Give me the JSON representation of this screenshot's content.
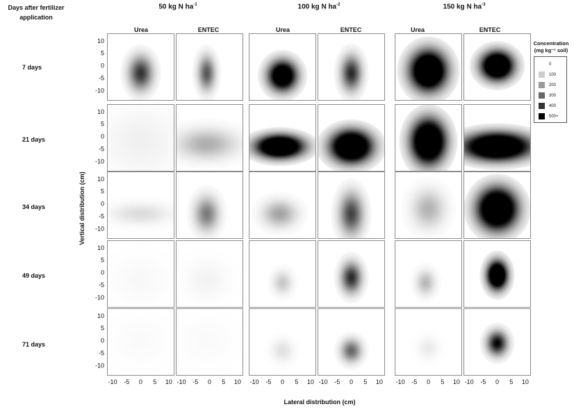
{
  "chart_data": {
    "type": "heatmap",
    "corner_title": [
      "Days after fertilizer",
      "application"
    ],
    "groups": [
      {
        "label": "50 kg N ha",
        "sup": "-1"
      },
      {
        "label": "100 kg N ha",
        "sup": "-2"
      },
      {
        "label": "150 kg N ha",
        "sup": "-3"
      }
    ],
    "columns": [
      "Urea",
      "ENTEC"
    ],
    "rows": [
      "7 days",
      "21 days",
      "34 days",
      "49 days",
      "71 days"
    ],
    "ylabel": "Vertical distribution (cm)",
    "xlabel": "Lateral distribution (cm)",
    "xlim": [
      -12,
      12
    ],
    "ylim": [
      -14,
      13
    ],
    "xticks": [
      -10,
      -5,
      0,
      5,
      10
    ],
    "yticks": [
      10,
      5,
      0,
      -5,
      -10
    ],
    "legend": {
      "title_line1": "Concentration",
      "title_line2": "(mg kg⁻¹ soil)",
      "levels": [
        {
          "label": "0",
          "value": 0,
          "color": "#ffffff"
        },
        {
          "label": "100",
          "value": 100,
          "color": "#cccccc"
        },
        {
          "label": "200",
          "value": 200,
          "color": "#999999"
        },
        {
          "label": "300",
          "value": 300,
          "color": "#666666"
        },
        {
          "label": "400",
          "value": 400,
          "color": "#333333"
        },
        {
          "label": "500+",
          "value": 500,
          "color": "#000000"
        }
      ]
    },
    "plumes": [
      [
        {
          "cx": 0,
          "cy": -3,
          "sx": 2.8,
          "sy": 4.5,
          "peak": 400
        },
        {
          "cx": -1,
          "cy": -3,
          "sx": 2.0,
          "sy": 4.5,
          "peak": 330
        },
        {
          "cx": 0,
          "cy": -4,
          "sx": 3.4,
          "sy": 4.0,
          "peak": 800
        },
        {
          "cx": 0,
          "cy": -3,
          "sx": 2.4,
          "sy": 4.6,
          "peak": 420
        },
        {
          "cx": 0,
          "cy": -2,
          "sx": 4.3,
          "sy": 5.3,
          "peak": 950
        },
        {
          "cx": 0,
          "cy": 0,
          "sx": 3.8,
          "sy": 3.8,
          "peak": 950
        }
      ],
      [
        {
          "cx": 0,
          "cy": -2,
          "sx": 9.0,
          "sy": 9.0,
          "peak": 30
        },
        {
          "cx": -1,
          "cy": -3,
          "sx": 7.0,
          "sy": 4.0,
          "peak": 160
        },
        {
          "cx": -1,
          "cy": -4,
          "sx": 5.5,
          "sy": 3.0,
          "peak": 1000
        },
        {
          "cx": 0,
          "cy": -4,
          "sx": 4.8,
          "sy": 4.2,
          "peak": 1000
        },
        {
          "cx": 0,
          "cy": -2,
          "sx": 4.0,
          "sy": 5.8,
          "peak": 1000
        },
        {
          "cx": 0,
          "cy": -4,
          "sx": 7.8,
          "sy": 3.6,
          "peak": 1000
        }
      ],
      [
        {
          "cx": 0,
          "cy": -4,
          "sx": 7.0,
          "sy": 2.8,
          "peak": 70
        },
        {
          "cx": -1,
          "cy": -4,
          "sx": 2.8,
          "sy": 4.5,
          "peak": 260
        },
        {
          "cx": -1,
          "cy": -4,
          "sx": 4.0,
          "sy": 3.5,
          "peak": 180
        },
        {
          "cx": 0,
          "cy": -4,
          "sx": 2.8,
          "sy": 5.5,
          "peak": 370
        },
        {
          "cx": 0,
          "cy": -2,
          "sx": 3.8,
          "sy": 5.0,
          "peak": 150
        },
        {
          "cx": 0,
          "cy": -2,
          "sx": 4.6,
          "sy": 5.4,
          "peak": 1000
        }
      ],
      [
        {
          "cx": 0,
          "cy": -3,
          "sx": 6.0,
          "sy": 6.0,
          "peak": 15
        },
        {
          "cx": -1,
          "cy": -3,
          "sx": 5.0,
          "sy": 5.0,
          "peak": 25
        },
        {
          "cx": 0,
          "cy": -4,
          "sx": 2.2,
          "sy": 3.0,
          "peak": 110
        },
        {
          "cx": 0,
          "cy": -2,
          "sx": 2.4,
          "sy": 4.0,
          "peak": 420
        },
        {
          "cx": -1,
          "cy": -4,
          "sx": 2.2,
          "sy": 3.2,
          "peak": 140
        },
        {
          "cx": 0,
          "cy": -1,
          "sx": 2.4,
          "sy": 3.8,
          "peak": 900
        }
      ],
      [
        {
          "cx": 0,
          "cy": 0,
          "sx": 6.0,
          "sy": 6.0,
          "peak": 10
        },
        {
          "cx": -1,
          "cy": 0,
          "sx": 6.0,
          "sy": 6.0,
          "peak": 10
        },
        {
          "cx": 0,
          "cy": -4,
          "sx": 2.5,
          "sy": 3.0,
          "peak": 60
        },
        {
          "cx": 0,
          "cy": -4,
          "sx": 2.4,
          "sy": 3.0,
          "peak": 300
        },
        {
          "cx": 0,
          "cy": -3,
          "sx": 2.5,
          "sy": 3.0,
          "peak": 40
        },
        {
          "cx": 0,
          "cy": -1,
          "sx": 2.4,
          "sy": 3.2,
          "peak": 500
        }
      ]
    ]
  }
}
